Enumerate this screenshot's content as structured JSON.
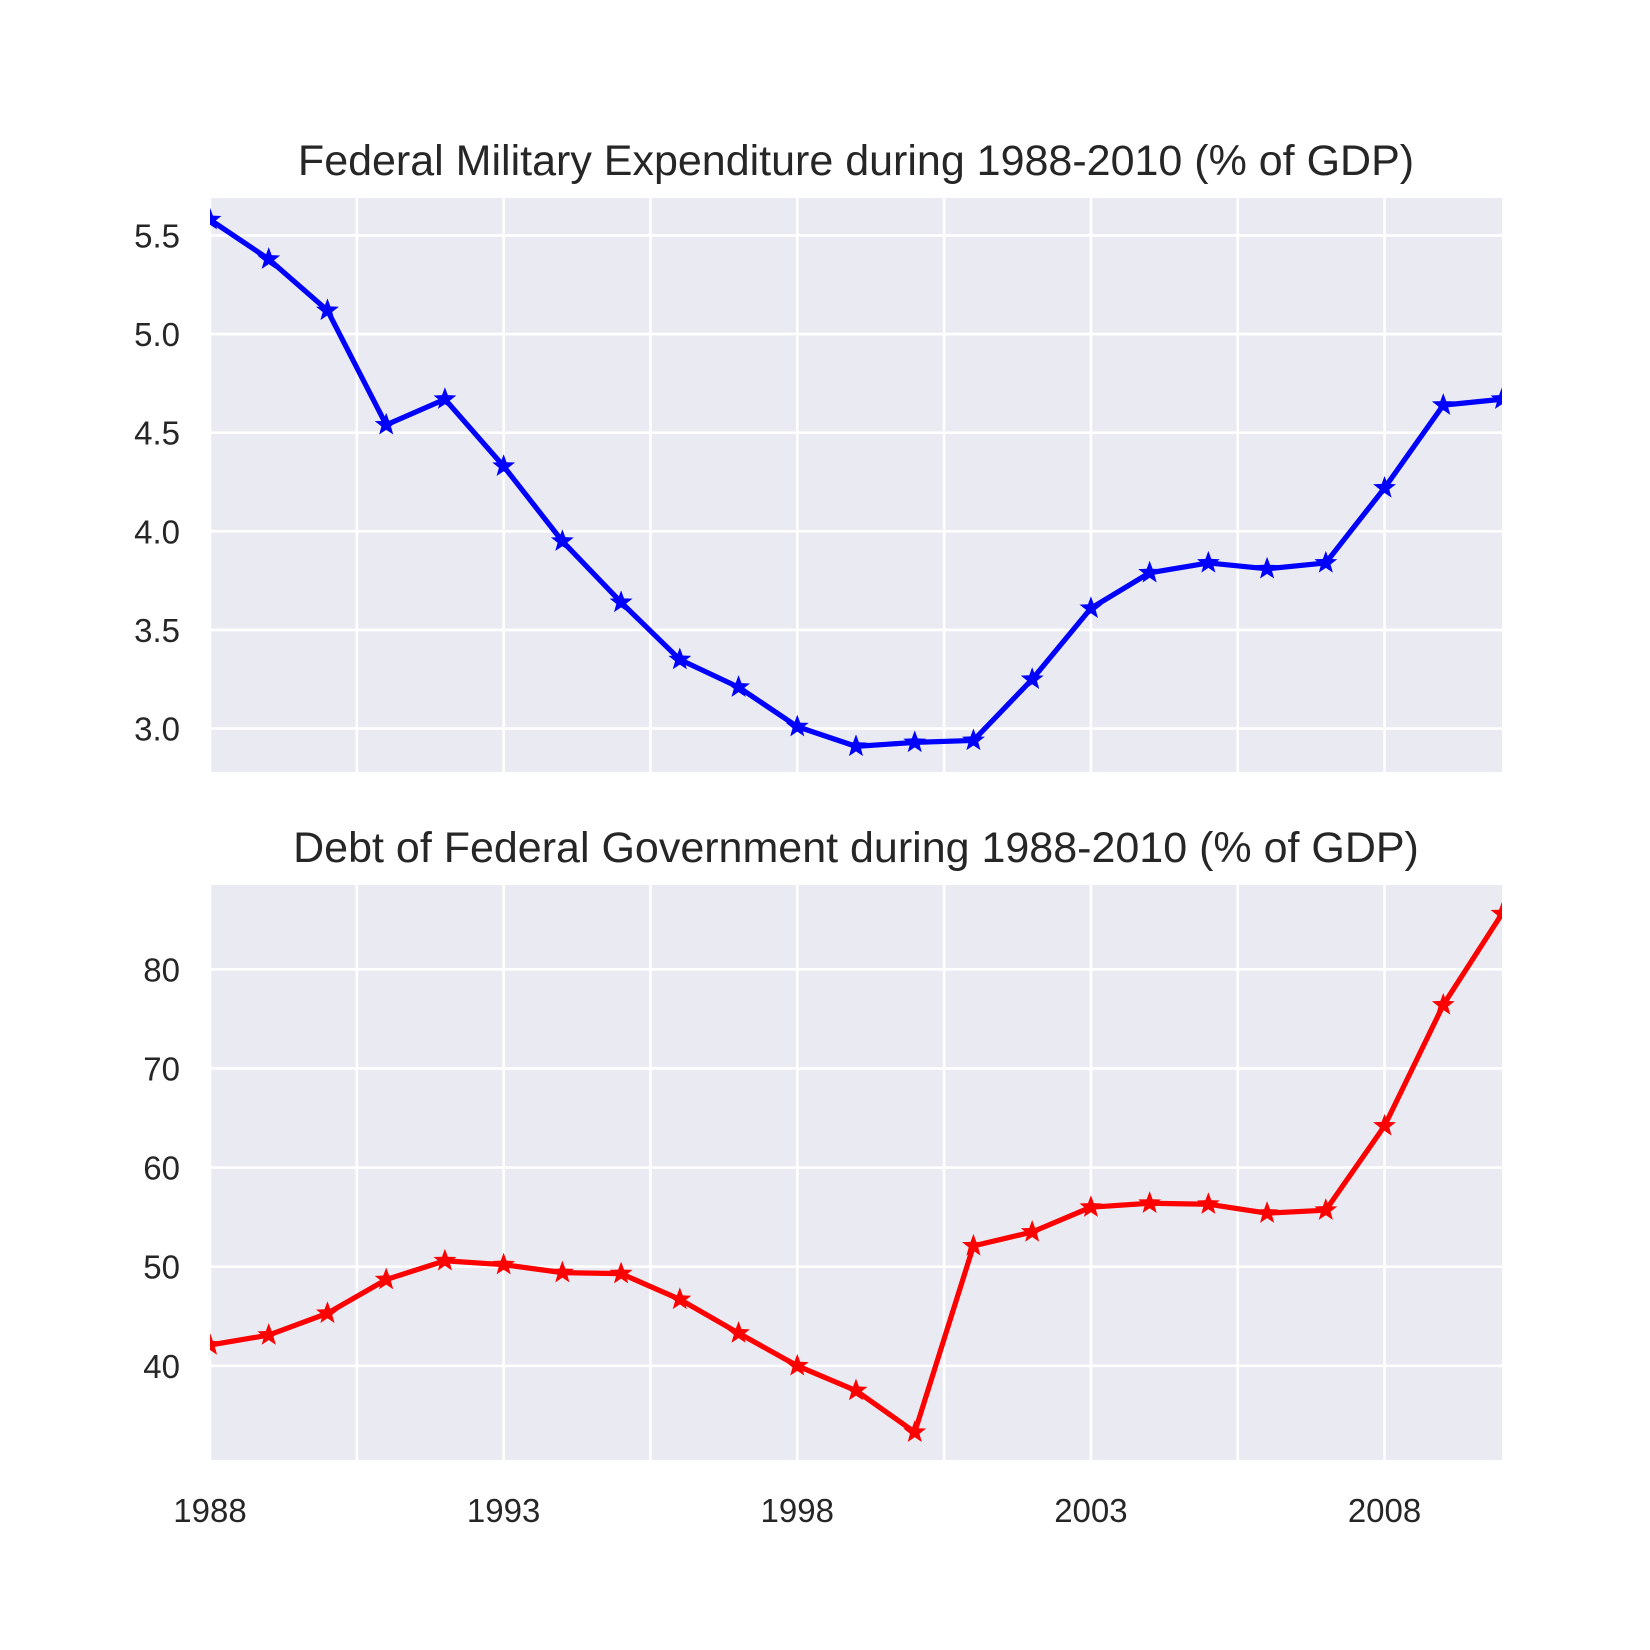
{
  "chart_data": [
    {
      "type": "line",
      "title": "Federal Military Expenditure during 1988-2010 (% of GDP)",
      "xlabel": "",
      "ylabel": "",
      "x": [
        1988,
        1989,
        1990,
        1991,
        1992,
        1993,
        1994,
        1995,
        1996,
        1997,
        1998,
        1999,
        2000,
        2001,
        2002,
        2003,
        2004,
        2005,
        2006,
        2007,
        2008,
        2009,
        2010
      ],
      "xlim": [
        1988,
        2010
      ],
      "ylim": [
        2.78,
        5.69
      ],
      "x_ticks": [
        1988,
        1993,
        1998,
        2003,
        2008
      ],
      "x_tick_labels_visible": false,
      "y_ticks": [
        3.0,
        3.5,
        4.0,
        4.5,
        5.0,
        5.5
      ],
      "y_tick_labels": [
        "3.0",
        "3.5",
        "4.0",
        "4.5",
        "5.0",
        "5.5"
      ],
      "grid": true,
      "marker": "star",
      "series": [
        {
          "color": "#0000ff",
          "values": [
            5.58,
            5.38,
            5.12,
            4.54,
            4.67,
            4.33,
            3.95,
            3.64,
            3.35,
            3.21,
            3.01,
            2.91,
            2.93,
            2.94,
            3.25,
            3.61,
            3.79,
            3.84,
            3.81,
            3.84,
            4.22,
            4.64,
            4.67
          ]
        }
      ]
    },
    {
      "type": "line",
      "title": "Debt of Federal Government during 1988-2010 (% of GDP)",
      "xlabel": "",
      "ylabel": "",
      "x": [
        1988,
        1989,
        1990,
        1991,
        1992,
        1993,
        1994,
        1995,
        1996,
        1997,
        1998,
        1999,
        2000,
        2001,
        2002,
        2003,
        2004,
        2005,
        2006,
        2007,
        2008,
        2009,
        2010
      ],
      "xlim": [
        1988,
        2010
      ],
      "ylim": [
        30.5,
        88.5
      ],
      "x_ticks": [
        1988,
        1993,
        1998,
        2003,
        2008
      ],
      "x_tick_labels": [
        "1988",
        "1993",
        "1998",
        "2003",
        "2008"
      ],
      "y_ticks": [
        40,
        50,
        60,
        70,
        80
      ],
      "y_tick_labels": [
        "40",
        "50",
        "60",
        "70",
        "80"
      ],
      "grid": true,
      "marker": "star",
      "series": [
        {
          "color": "#ff0000",
          "values": [
            42.1,
            43.1,
            45.3,
            48.7,
            50.6,
            50.2,
            49.4,
            49.3,
            46.7,
            43.3,
            40.0,
            37.5,
            33.3,
            52.1,
            53.5,
            56.0,
            56.4,
            56.3,
            55.4,
            55.7,
            64.2,
            76.4,
            85.6
          ]
        }
      ]
    }
  ]
}
